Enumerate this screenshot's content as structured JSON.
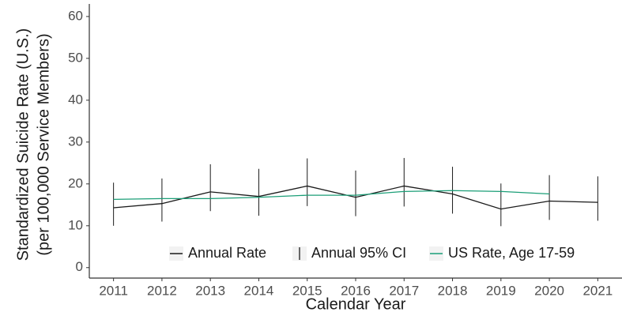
{
  "chart_data": {
    "type": "line",
    "x_label": "Calendar Year",
    "y_label": [
      "Standardized Suicide Rate (U.S.)",
      "(per 100,000 Service Members)"
    ],
    "x": [
      2011,
      2012,
      2013,
      2014,
      2015,
      2016,
      2017,
      2018,
      2019,
      2020,
      2021
    ],
    "series": [
      {
        "name": "Annual Rate",
        "color": "#1a1a1a",
        "values": [
          14.3,
          15.3,
          18.1,
          17.0,
          19.5,
          16.8,
          19.5,
          17.6,
          14.0,
          15.9,
          15.6
        ]
      },
      {
        "name": "Annual 95% CI",
        "color": "#1a1a1a",
        "lower": [
          10.0,
          11.0,
          13.5,
          12.4,
          14.7,
          12.3,
          14.6,
          12.9,
          9.9,
          11.4,
          11.2
        ],
        "upper": [
          20.3,
          21.3,
          24.7,
          23.6,
          26.1,
          23.2,
          26.2,
          24.1,
          20.1,
          22.1,
          21.8
        ]
      },
      {
        "name": "US Rate, Age 17-59",
        "color": "#1b9e77",
        "values": [
          16.3,
          16.5,
          16.5,
          16.8,
          17.3,
          17.3,
          18.2,
          18.4,
          18.2,
          17.6,
          null
        ]
      }
    ],
    "xlim": [
      2010.5,
      2021.5
    ],
    "xticks": [
      2011,
      2012,
      2013,
      2014,
      2015,
      2016,
      2017,
      2018,
      2019,
      2020,
      2021
    ],
    "ylim": [
      -2.5,
      63
    ],
    "yticks": [
      0,
      10,
      20,
      30,
      40,
      50,
      60
    ],
    "grid": false,
    "legend": "bottom-right"
  }
}
